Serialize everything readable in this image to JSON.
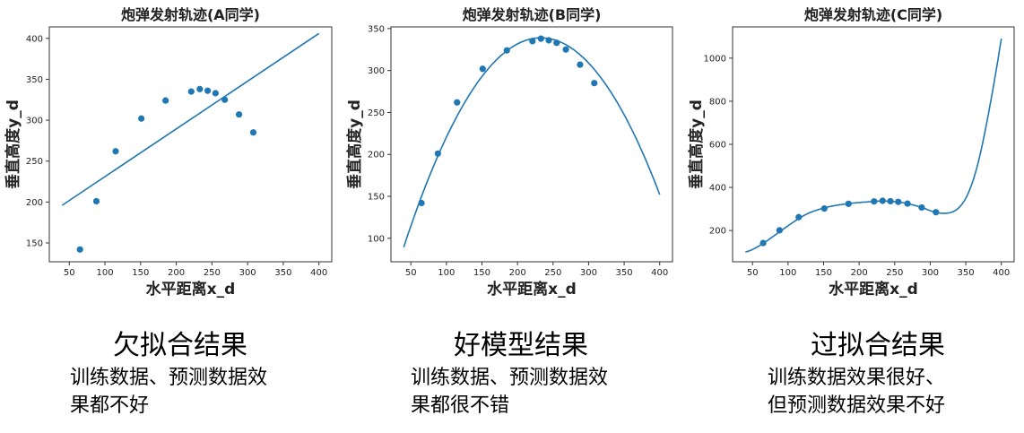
{
  "chart_data": [
    {
      "type": "scatter",
      "title": "炮弹发射轨迹(A同学)",
      "xlabel": "水平距离x_d",
      "ylabel": "垂直高度y_d",
      "xlim": [
        22,
        418
      ],
      "ylim": [
        127,
        414
      ],
      "xticks": [
        50,
        100,
        150,
        200,
        250,
        300,
        350,
        400
      ],
      "yticks": [
        150,
        200,
        250,
        300,
        350,
        400
      ],
      "points": {
        "x": [
          65,
          88,
          115,
          151,
          185,
          221,
          233,
          244,
          255,
          268,
          288,
          308
        ],
        "y": [
          142,
          201,
          262,
          302,
          324,
          335,
          338,
          336,
          333,
          325,
          307,
          285
        ]
      },
      "fit": {
        "kind": "linear",
        "x": [
          40,
          400
        ],
        "y": [
          196,
          406
        ]
      },
      "color": "#1f77b4",
      "caption": {
        "title": "欠拟合结果",
        "desc": "训练数据、预测数据效\n果都不好"
      }
    },
    {
      "type": "scatter",
      "title": "炮弹发射轨迹(B同学)",
      "xlabel": "水平距离x_d",
      "ylabel": "垂直高度y_d",
      "xlim": [
        22,
        418
      ],
      "ylim": [
        72,
        352
      ],
      "xticks": [
        50,
        100,
        150,
        200,
        250,
        300,
        350,
        400
      ],
      "yticks": [
        100,
        150,
        200,
        250,
        300,
        350
      ],
      "points": {
        "x": [
          65,
          88,
          115,
          151,
          185,
          221,
          233,
          244,
          255,
          268,
          288,
          308
        ],
        "y": [
          142,
          201,
          262,
          302,
          324,
          335,
          338,
          336,
          333,
          325,
          307,
          285
        ]
      },
      "fit": {
        "kind": "quadratic",
        "x": [
          40,
          400
        ],
        "vertex": [
          233,
          339
        ],
        "a": -0.0067
      },
      "color": "#1f77b4",
      "caption": {
        "title": "好模型结果",
        "desc": "训练数据、预测数据效\n果都很不错"
      }
    },
    {
      "type": "scatter",
      "title": "炮弹发射轨迹(C同学)",
      "xlabel": "水平距离x_d",
      "ylabel": "垂直高度y_d",
      "xlim": [
        22,
        418
      ],
      "ylim": [
        55,
        1145
      ],
      "xticks": [
        50,
        100,
        150,
        200,
        250,
        300,
        350,
        400
      ],
      "yticks": [
        200,
        400,
        600,
        800,
        1000
      ],
      "points": {
        "x": [
          65,
          88,
          115,
          151,
          185,
          221,
          233,
          244,
          255,
          268,
          288,
          308
        ],
        "y": [
          142,
          201,
          262,
          302,
          324,
          335,
          338,
          336,
          333,
          325,
          307,
          285
        ]
      },
      "fit": {
        "kind": "curve",
        "x": [
          40,
          50,
          65,
          80,
          100,
          115,
          130,
          151,
          170,
          185,
          200,
          221,
          233,
          250,
          268,
          288,
          300,
          310,
          320,
          330,
          340,
          350,
          360,
          370,
          380,
          390,
          400
        ],
        "y": [
          100,
          112,
          140,
          175,
          222,
          255,
          282,
          305,
          318,
          325,
          330,
          335,
          337,
          334,
          325,
          307,
          292,
          283,
          280,
          285,
          305,
          350,
          430,
          550,
          710,
          890,
          1090
        ]
      },
      "color": "#1f77b4",
      "caption": {
        "title": "过拟合结果",
        "desc": "训练数据效果很好、\n但预测数据效果不好"
      }
    }
  ]
}
